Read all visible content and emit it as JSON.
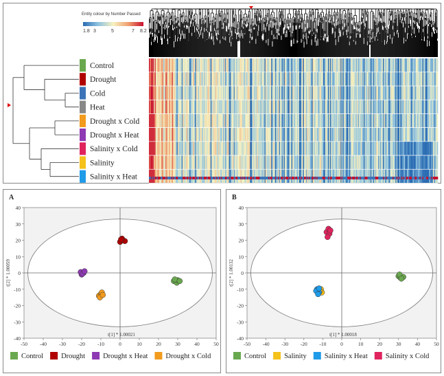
{
  "heatmap": {
    "legend": {
      "title": "Entity colour by Number Passed",
      "ticks": [
        "1.8",
        "3",
        "5",
        "7",
        "8.2"
      ],
      "colors": [
        "#2b6cb3",
        "#8fc3e0",
        "#f6f1c0",
        "#f0a070",
        "#c8102e"
      ]
    },
    "rows": [
      {
        "label": "Control",
        "color": "#6aa84f"
      },
      {
        "label": "Drought",
        "color": "#b00000"
      },
      {
        "label": "Cold",
        "color": "#3d74b8"
      },
      {
        "label": "Heat",
        "color": "#888888"
      },
      {
        "label": "Drought x Cold",
        "color": "#f29b1d"
      },
      {
        "label": "Drought x Heat",
        "color": "#8e3ab3"
      },
      {
        "label": "Salinity x Cold",
        "color": "#e0245e"
      },
      {
        "label": "Salinity",
        "color": "#f5c11b"
      },
      {
        "label": "Salinity x Heat",
        "color": "#1f9be8"
      }
    ]
  },
  "chart_data": [
    {
      "type": "scatter",
      "panel_label": "A",
      "xlabel": "t[1] * 1.00021",
      "ylabel": "t[2] * 1.00059",
      "xlim": [
        -50,
        50
      ],
      "ylim": [
        -40,
        40
      ],
      "xticks": [
        "-50",
        "-40",
        "-30",
        "-20",
        "-10",
        "0",
        "10",
        "20",
        "30",
        "40",
        "50"
      ],
      "yticks": [
        "40",
        "30",
        "20",
        "10",
        "0",
        "-10",
        "-20",
        "-30",
        "-40"
      ],
      "series": [
        {
          "name": "Control",
          "color": "#6aa84f",
          "points": [
            [
              28,
              -5
            ],
            [
              29.5,
              -6
            ],
            [
              30,
              -4.5
            ],
            [
              28.5,
              -4
            ],
            [
              31,
              -5
            ]
          ]
        },
        {
          "name": "Drought",
          "color": "#b00000",
          "points": [
            [
              0,
              19
            ],
            [
              1.5,
              20
            ],
            [
              2.5,
              19.5
            ],
            [
              1,
              21
            ],
            [
              0.5,
              20.5
            ]
          ]
        },
        {
          "name": "Drought x Heat",
          "color": "#8e3ab3",
          "points": [
            [
              -20,
              -1
            ],
            [
              -19,
              0
            ],
            [
              -20.5,
              0.5
            ],
            [
              -19.5,
              -0.5
            ],
            [
              -18.5,
              1
            ]
          ]
        },
        {
          "name": "Drought x Cold",
          "color": "#f29b1d",
          "points": [
            [
              -11,
              -14
            ],
            [
              -10,
              -13
            ],
            [
              -9.5,
              -12
            ],
            [
              -10.5,
              -15
            ],
            [
              -9,
              -13.5
            ]
          ]
        }
      ]
    },
    {
      "type": "scatter",
      "panel_label": "B",
      "xlabel": "t[1] * 1.00018",
      "ylabel": "t[2] * 1.00132",
      "xlim": [
        -50,
        50
      ],
      "ylim": [
        -40,
        40
      ],
      "xticks": [
        "-50",
        "-40",
        "-30",
        "-20",
        "-10",
        "0",
        "10",
        "20",
        "30",
        "40",
        "50"
      ],
      "yticks": [
        "40",
        "30",
        "20",
        "10",
        "0",
        "-10",
        "-20",
        "-30",
        "-40"
      ],
      "series": [
        {
          "name": "Control",
          "color": "#6aa84f",
          "points": [
            [
              30,
              -2
            ],
            [
              31,
              -3
            ],
            [
              32.5,
              -2.5
            ],
            [
              30.5,
              -1
            ],
            [
              31.5,
              -3.5
            ]
          ]
        },
        {
          "name": "Salinity",
          "color": "#f5c11b",
          "points": [
            [
              -11,
              -10
            ],
            [
              -10.5,
              -12
            ],
            [
              -11.5,
              -11
            ]
          ]
        },
        {
          "name": "Salinity x Heat",
          "color": "#1f9be8",
          "points": [
            [
              -13,
              -10
            ],
            [
              -12,
              -12
            ],
            [
              -13.5,
              -11
            ],
            [
              -12.5,
              -13
            ],
            [
              -12,
              -9.5
            ]
          ]
        },
        {
          "name": "Salinity x Cold",
          "color": "#e0245e",
          "points": [
            [
              -8,
              25
            ],
            [
              -7,
              27
            ],
            [
              -6.5,
              24
            ],
            [
              -7.5,
              22
            ],
            [
              -6,
              26
            ]
          ]
        }
      ]
    }
  ]
}
